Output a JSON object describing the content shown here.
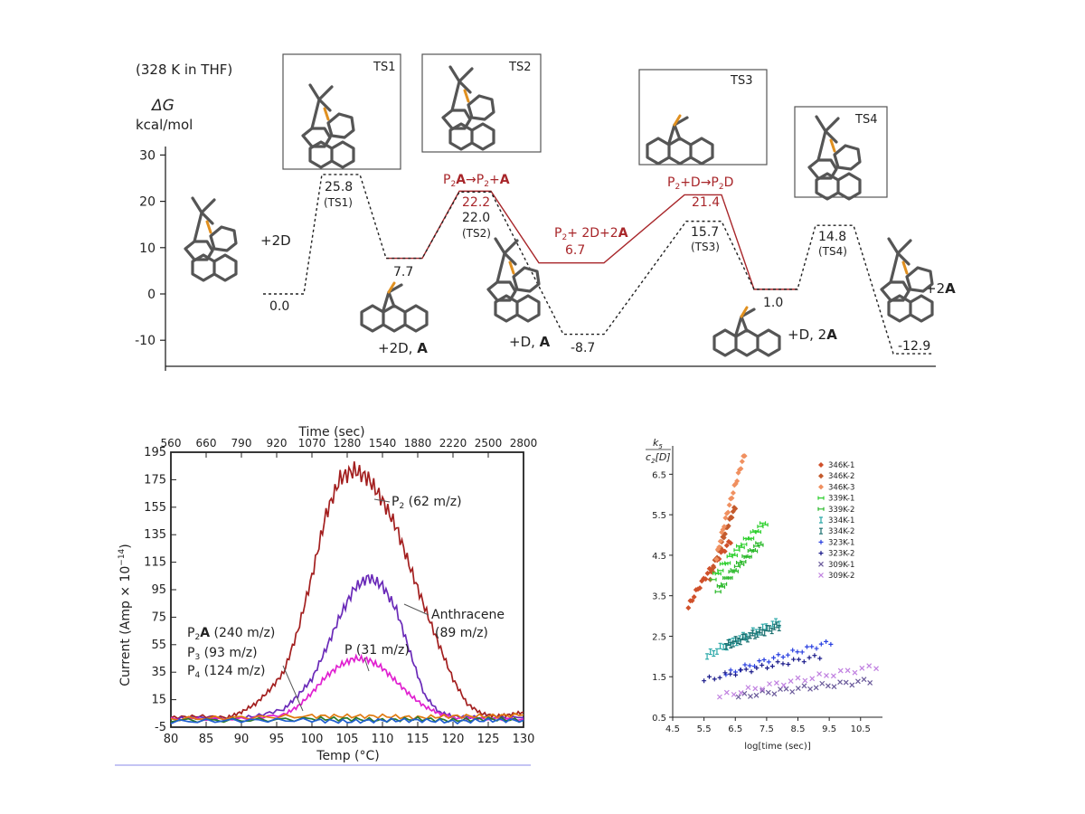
{
  "chart_data": [
    {
      "type": "line",
      "subtitle": "(328 K in THF)",
      "ylabel_symbol": "ΔG",
      "ylabel": "kcal/mol",
      "yticks": [
        "30",
        "20",
        "10",
        "0",
        "-10"
      ],
      "ylim": [
        -15,
        32
      ],
      "series": [
        {
          "style": "dotted-black",
          "values": [
            0.0,
            25.8,
            7.7,
            22.0,
            -8.7,
            15.7,
            1.0,
            14.8,
            -12.9
          ]
        },
        {
          "style": "solid-red",
          "values": [
            7.7,
            22.2,
            6.7,
            21.4,
            1.0
          ]
        }
      ],
      "labels": {
        "s0": "0.0",
        "ts1_val": "25.8",
        "ts1": "(TS1)",
        "i1": "7.7",
        "ts2_val": "22.0",
        "ts2": "(TS2)",
        "i2": "-8.7",
        "ts3_val": "15.7",
        "ts3": "(TS3)",
        "i3": "1.0",
        "ts4_val": "14.8",
        "ts4": "(TS4)",
        "f": "-12.9",
        "r1_val": "22.2",
        "r2_val": "6.7",
        "r3_val": "21.4"
      },
      "species": {
        "plus2D": "+2D",
        "plus2D_A": "+2D, ",
        "plusD_A": "+D, ",
        "plusD_2A": "+D, 2",
        "plus2A": "+2",
        "bold_A": "A"
      },
      "red_rich": {
        "r1a": "P",
        "r1b": "2",
        "r1c": "A",
        "r1d": "→P",
        "r1e": "2",
        "r1f": "+",
        "r1g": "A",
        "r2a": "P",
        "r2b": "2",
        "r2c": "+ 2D+2",
        "r2d": "A",
        "r3a": "P",
        "r3b": "2",
        "r3c": "+D→P",
        "r3d": "2",
        "r3e": "D"
      },
      "ts_boxes": [
        "TS1",
        "TS2",
        "TS3",
        "TS4"
      ]
    },
    {
      "type": "line",
      "xlabel": "Temp (°C)",
      "x2label": "Time (sec)",
      "ylabel": "Current (Amp × 10",
      "ylabel_exp": "−14",
      "ylabel_close": ")",
      "xticks": [
        "80",
        "85",
        "90",
        "95",
        "100",
        "105",
        "110",
        "115",
        "120",
        "125",
        "130"
      ],
      "x2ticks": [
        "560",
        "660",
        "790",
        "920",
        "1070",
        "1280",
        "1540",
        "1880",
        "2220",
        "2500",
        "2800"
      ],
      "yticks": [
        "195",
        "175",
        "155",
        "135",
        "115",
        "95",
        "75",
        "55",
        "35",
        "15",
        "-5"
      ],
      "xlim": [
        80,
        130
      ],
      "ylim": [
        -5,
        195
      ],
      "series": [
        {
          "color": "#a31f1f",
          "x": [
            80,
            84,
            88,
            90,
            92,
            94,
            96,
            98,
            100,
            102,
            104,
            106,
            108,
            110,
            112,
            114,
            116,
            118,
            120,
            122,
            124,
            126,
            128,
            130
          ],
          "values": [
            2,
            3,
            2,
            6,
            12,
            22,
            35,
            65,
            105,
            150,
            176,
            182,
            176,
            160,
            140,
            110,
            82,
            55,
            30,
            12,
            5,
            3,
            4,
            6
          ]
        },
        {
          "color": "#6a2ab8",
          "x": [
            80,
            84,
            88,
            92,
            96,
            98,
            100,
            102,
            104,
            106,
            108,
            110,
            112,
            114,
            116,
            118,
            120,
            124,
            130
          ],
          "values": [
            1,
            2,
            1,
            3,
            8,
            18,
            30,
            52,
            76,
            96,
            104,
            98,
            80,
            48,
            18,
            6,
            3,
            2,
            2
          ]
        },
        {
          "color": "#e020d0",
          "x": [
            80,
            90,
            96,
            98,
            100,
            102,
            104,
            106,
            108,
            110,
            112,
            114,
            116,
            118,
            120,
            124,
            130
          ],
          "values": [
            1,
            1,
            4,
            10,
            20,
            32,
            40,
            45,
            44,
            38,
            28,
            18,
            10,
            5,
            2,
            1,
            1
          ]
        },
        {
          "color": "#e07a10",
          "x": [
            80,
            90,
            100,
            105,
            110,
            115,
            120,
            125,
            130
          ],
          "values": [
            1,
            2,
            3,
            3,
            3,
            2,
            3,
            3,
            4
          ]
        },
        {
          "color": "#2a7a2a",
          "x": [
            80,
            90,
            100,
            105,
            110,
            115,
            120,
            125,
            130
          ],
          "values": [
            0,
            0,
            1,
            1,
            0,
            1,
            0,
            1,
            0
          ]
        },
        {
          "color": "#1f5fd0",
          "x": [
            80,
            90,
            100,
            105,
            110,
            115,
            120,
            125,
            130
          ],
          "values": [
            -1,
            0,
            0,
            -1,
            0,
            0,
            -1,
            0,
            0
          ]
        }
      ],
      "annotations": {
        "p2a": "P",
        "p2b": "2",
        "p2c": " (62 m/z)",
        "anth1": "Anthracene",
        "anth2": "(89 m/z)",
        "p31": "P (31 m/z)",
        "l1a": "P",
        "l1b": "2",
        "l1c": "A",
        "l1d": " (240 m/z)",
        "l2a": "P",
        "l2b": "3",
        "l2c": " (93 m/z)",
        "l3a": "P",
        "l3b": "4",
        "l3c": " (124 m/z)"
      }
    },
    {
      "type": "scatter",
      "ylabel_num": "k",
      "ylabel_num_sub": "5",
      "ylabel_den": "c",
      "ylabel_den_sub": "2",
      "ylabel_den_rest": "[D]",
      "xlabel": "log[time (sec)]",
      "xticks": [
        "4.5",
        "5.5",
        "6.5",
        "7.5",
        "8.5",
        "9.5",
        "10.5"
      ],
      "yticks": [
        "6.5",
        "5.5",
        "4.5",
        "3.5",
        "2.5",
        "1.5",
        "0.5"
      ],
      "xlim": [
        4.5,
        11.2
      ],
      "ylim": [
        0.5,
        7.2
      ],
      "series": [
        {
          "name": "346K-1",
          "color": "#d0502a",
          "marker": "diamond",
          "x0": 5.0,
          "x1": 6.35,
          "y0": 3.2,
          "y1": 4.85
        },
        {
          "name": "346K-2",
          "color": "#c45a2c",
          "marker": "diamond",
          "x0": 5.7,
          "x1": 6.5,
          "y0": 3.9,
          "y1": 5.7
        },
        {
          "name": "346K-3",
          "color": "#f09060",
          "marker": "diamond",
          "x0": 5.9,
          "x1": 6.8,
          "y0": 4.4,
          "y1": 7.0
        },
        {
          "name": "339K-1",
          "color": "#2fd02f",
          "marker": "bowtie",
          "x0": 5.8,
          "x1": 7.45,
          "y0": 3.9,
          "y1": 5.3
        },
        {
          "name": "339K-2",
          "color": "#28b828",
          "marker": "bowtie",
          "x0": 5.95,
          "x1": 7.3,
          "y0": 3.6,
          "y1": 4.8
        },
        {
          "name": "334K-1",
          "color": "#2aa8a8",
          "marker": "ibar",
          "x0": 5.6,
          "x1": 7.9,
          "y0": 2.0,
          "y1": 2.85
        },
        {
          "name": "334K-2",
          "color": "#1a6f6f",
          "marker": "ibar",
          "x0": 6.2,
          "x1": 7.9,
          "y0": 2.25,
          "y1": 2.75
        },
        {
          "name": "323K-1",
          "color": "#2a40e0",
          "marker": "plus",
          "x0": 6.2,
          "x1": 9.55,
          "y0": 1.55,
          "y1": 2.35
        },
        {
          "name": "323K-2",
          "color": "#1a1a8a",
          "marker": "plus",
          "x0": 5.5,
          "x1": 9.2,
          "y0": 1.4,
          "y1": 2.0
        },
        {
          "name": "309K-1",
          "color": "#6a5a9a",
          "marker": "cross",
          "x0": 6.6,
          "x1": 10.8,
          "y0": 1.0,
          "y1": 1.4
        },
        {
          "name": "309K-2",
          "color": "#c080e0",
          "marker": "cross",
          "x0": 6.0,
          "x1": 11.0,
          "y0": 1.0,
          "y1": 1.75
        }
      ]
    }
  ]
}
